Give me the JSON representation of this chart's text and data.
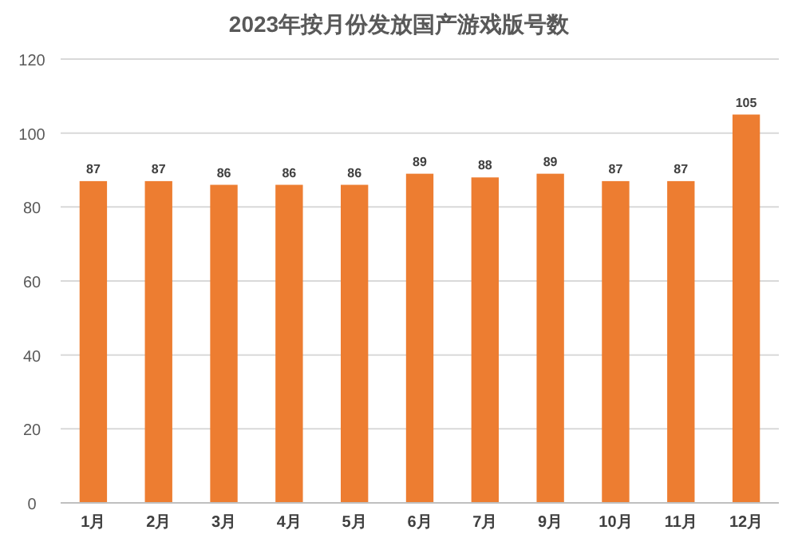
{
  "chart_data": {
    "type": "bar",
    "title": "2023年按月份发放国产游戏版号数",
    "categories": [
      "1月",
      "2月",
      "3月",
      "4月",
      "5月",
      "6月",
      "7月",
      "9月",
      "10月",
      "11月",
      "12月"
    ],
    "values": [
      87,
      87,
      86,
      86,
      86,
      89,
      88,
      89,
      87,
      87,
      105
    ],
    "color": "#ed7d31",
    "ylim": [
      0,
      120
    ],
    "yticks": [
      0,
      20,
      40,
      60,
      80,
      100,
      120
    ],
    "grid": "y",
    "data_labels": true
  }
}
